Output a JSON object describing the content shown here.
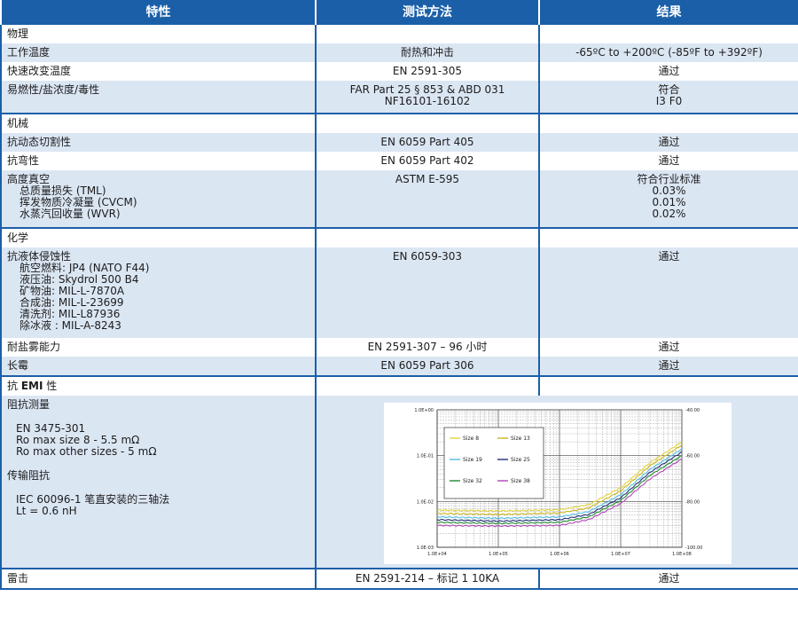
{
  "header": {
    "col1": "特性",
    "col2": "测试方法",
    "col3": "结果"
  },
  "physics": {
    "section": "物理",
    "rows": [
      {
        "name": "工作温度",
        "method": "耐热和冲击",
        "result": "-65ºC to +200ºC (-85ºF to +392ºF)"
      },
      {
        "name": "快速改变温度",
        "method": "EN 2591-305",
        "result": "通过"
      },
      {
        "name": "易燃性/盐浓度/毒性",
        "method1": "FAR Part 25 § 853 & ABD 031",
        "method2": "NF16101-16102",
        "result1": "符合",
        "result2": "I3 F0"
      }
    ]
  },
  "mechanical": {
    "section": "机械",
    "rows": [
      {
        "name": "抗动态切割性",
        "method": "EN 6059 Part 405",
        "result": "通过"
      },
      {
        "name": "抗弯性",
        "method": "EN 6059 Part 402",
        "result": "通过"
      }
    ],
    "vacuum": {
      "name": "高度真空",
      "subs": [
        "总质量损失 (TML)",
        "挥发物质冷凝量 (CVCM)",
        "水蒸汽回收量 (WVR)"
      ],
      "method": "ASTM E-595",
      "result_head": "符合行业标准",
      "results": [
        "0.03%",
        "0.01%",
        "0.02%"
      ]
    }
  },
  "chemical": {
    "section": "化学",
    "fluids": {
      "name": "抗液体侵蚀性",
      "subs": [
        "航空燃料: JP4 (NATO F44)",
        "液压油: Skydrol 500 B4",
        "矿物油: MIL-L-7870A",
        "合成油: MIL-L-23699",
        "清洗剂: MIL-L87936",
        "除冰液 : MIL-A-8243"
      ],
      "method": "EN 6059-303",
      "result": "通过"
    },
    "rows": [
      {
        "name": "耐盐雾能力",
        "method": "EN 2591-307 – 96 小时",
        "result": "通过"
      },
      {
        "name": "长霉",
        "method": "EN 6059 Part 306",
        "result": "通过"
      }
    ]
  },
  "emi": {
    "section_pre": "抗 ",
    "section_bold": "EMI",
    "section_post": " 性",
    "impedance_title": "阻抗测量",
    "impedance_lines": [
      "EN 3475-301",
      "Ro max size 8 - 5.5 mΩ",
      "Ro max other sizes - 5 mΩ"
    ],
    "transfer_title": "传输阻抗",
    "transfer_lines": [
      "IEC 60096-1 笔直安装的三轴法",
      "Lt = 0.6 nH"
    ]
  },
  "lightning": {
    "name": "雷击",
    "method": "EN 2591-214 – 标记 1 10KA",
    "result": "通过"
  },
  "chart_data": {
    "type": "line",
    "title": "",
    "xlabel": "",
    "ylabel": "",
    "x_scale": "log",
    "x_ticks": [
      "1.0E+04",
      "1.0E+05",
      "1.0E+06",
      "1.0E+07",
      "1.0E+08"
    ],
    "x_tick_values": [
      10000,
      100000,
      1000000,
      10000000,
      100000000
    ],
    "y_left_scale": "log",
    "y_left_ticks": [
      "1.0E+00",
      "1.0E-01",
      "1.0E-02",
      "1.0E-03"
    ],
    "y_left_tick_values": [
      1,
      0.1,
      0.01,
      0.001
    ],
    "y_right_ticks": [
      "-40.00",
      "-60.00",
      "-80.00",
      "-100.00"
    ],
    "grid": true,
    "legend_position": "top-left",
    "series": [
      {
        "name": "Size 8",
        "color": "#e3d23a",
        "x": [
          10000,
          100000,
          1000000,
          3000000,
          10000000,
          30000000,
          100000000
        ],
        "y": [
          0.0065,
          0.0062,
          0.0066,
          0.0085,
          0.02,
          0.07,
          0.2
        ]
      },
      {
        "name": "Size 13",
        "color": "#c9b51a",
        "x": [
          10000,
          100000,
          1000000,
          3000000,
          10000000,
          30000000,
          100000000
        ],
        "y": [
          0.0055,
          0.0052,
          0.0056,
          0.0072,
          0.017,
          0.06,
          0.17
        ]
      },
      {
        "name": "Size 19",
        "color": "#52bde0",
        "x": [
          10000,
          100000,
          1000000,
          3000000,
          10000000,
          30000000,
          100000000
        ],
        "y": [
          0.0046,
          0.0043,
          0.0046,
          0.006,
          0.014,
          0.05,
          0.14
        ]
      },
      {
        "name": "Size 25",
        "color": "#1e2f7a",
        "x": [
          10000,
          100000,
          1000000,
          3000000,
          10000000,
          30000000,
          100000000
        ],
        "y": [
          0.004,
          0.0037,
          0.004,
          0.0052,
          0.012,
          0.043,
          0.12
        ]
      },
      {
        "name": "Size 32",
        "color": "#1f8a2e",
        "x": [
          10000,
          100000,
          1000000,
          3000000,
          10000000,
          30000000,
          100000000
        ],
        "y": [
          0.0035,
          0.0033,
          0.0035,
          0.0046,
          0.0105,
          0.037,
          0.1
        ]
      },
      {
        "name": "Size 38",
        "color": "#b045b5",
        "x": [
          10000,
          100000,
          1000000,
          3000000,
          10000000,
          30000000,
          100000000
        ],
        "y": [
          0.003,
          0.0029,
          0.003,
          0.004,
          0.009,
          0.031,
          0.085
        ]
      }
    ]
  }
}
